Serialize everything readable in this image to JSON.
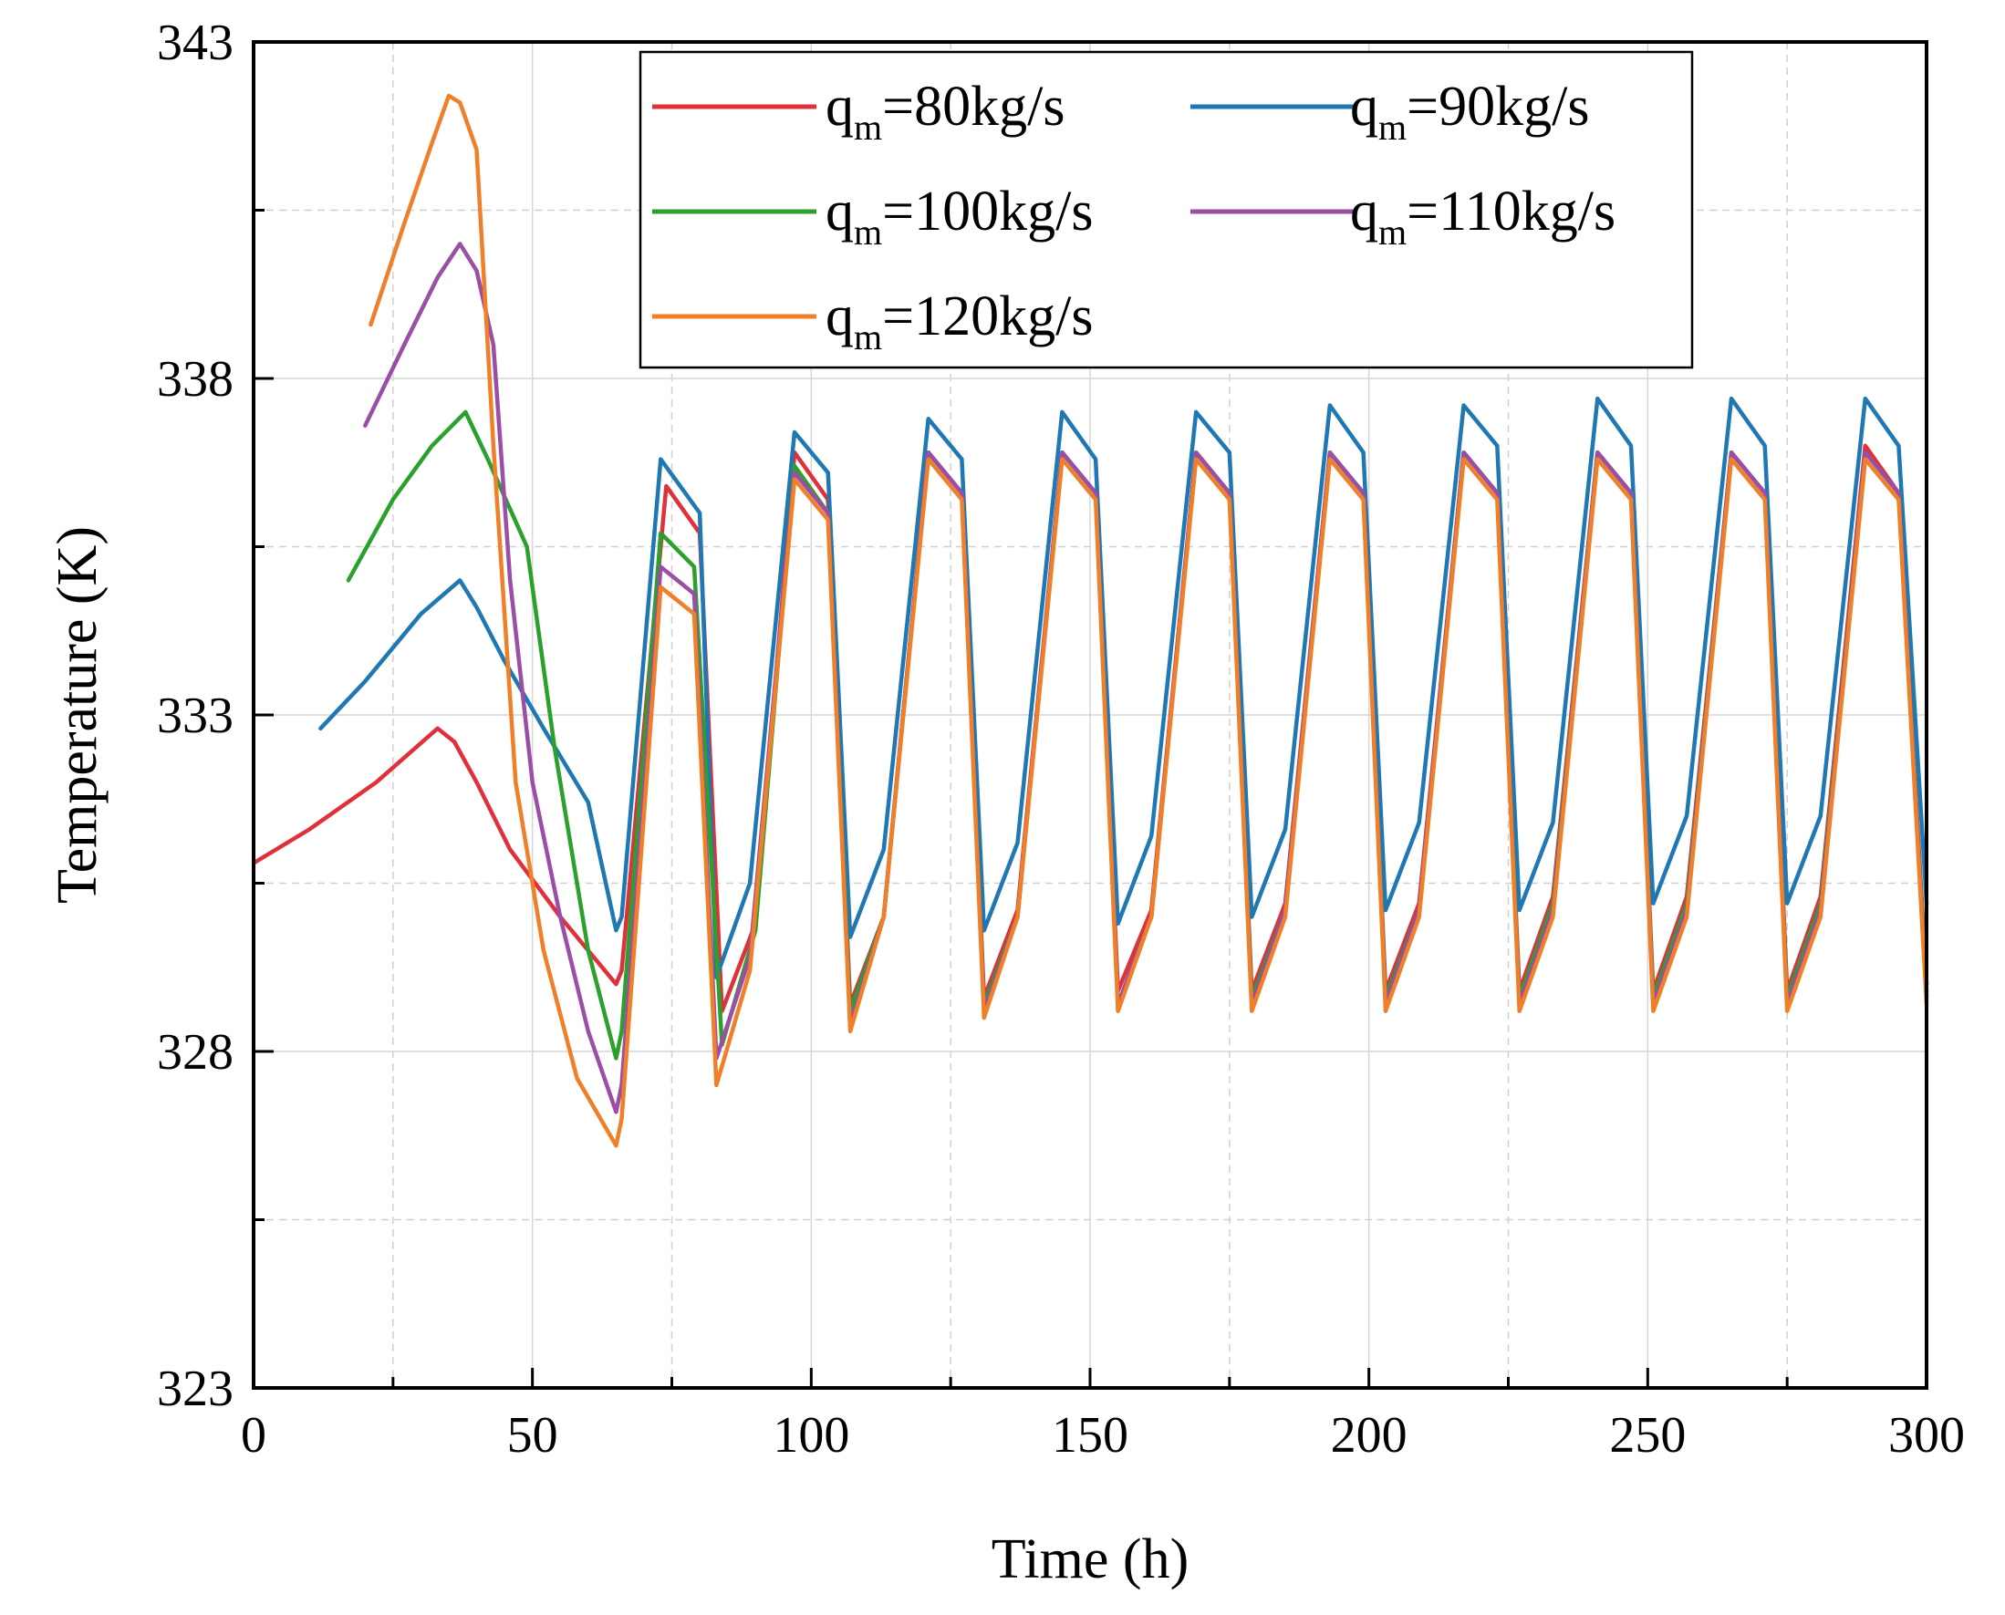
{
  "chart_data": {
    "type": "line",
    "title": "",
    "xlabel": "Time (h)",
    "ylabel": "Temperature (K)",
    "xlim": [
      0,
      300
    ],
    "ylim": [
      323,
      343
    ],
    "xticks": [
      0,
      50,
      100,
      150,
      200,
      250,
      300
    ],
    "yticks": [
      323,
      328,
      333,
      338,
      343
    ],
    "x_minor_step": 25,
    "y_minor_step": 2.5,
    "grid": true,
    "legend_position": "top-right",
    "series": [
      {
        "name": "q_m=80kg/s",
        "legend_main": "q",
        "legend_sub": "m",
        "legend_rest": "=80kg/s",
        "color": "#e0303a",
        "points": [
          [
            0,
            330.8
          ],
          [
            10,
            331.3
          ],
          [
            22,
            332.0
          ],
          [
            33,
            332.8
          ],
          [
            36,
            332.6
          ],
          [
            40,
            332.0
          ],
          [
            46,
            331.0
          ],
          [
            55,
            330.0
          ],
          [
            65,
            329.0
          ],
          [
            66,
            329.2
          ],
          [
            74,
            336.4
          ],
          [
            80,
            335.7
          ],
          [
            84,
            328.6
          ],
          [
            90,
            329.9
          ],
          [
            97,
            336.9
          ],
          [
            103,
            336.2
          ],
          [
            107,
            328.7
          ],
          [
            113,
            330.0
          ],
          [
            121,
            336.9
          ],
          [
            127,
            336.3
          ],
          [
            131,
            328.8
          ],
          [
            137,
            330.1
          ],
          [
            145,
            336.9
          ],
          [
            151,
            336.3
          ],
          [
            155,
            328.9
          ],
          [
            161,
            330.1
          ],
          [
            169,
            336.9
          ],
          [
            175,
            336.3
          ],
          [
            179,
            328.9
          ],
          [
            185,
            330.2
          ],
          [
            193,
            336.9
          ],
          [
            199,
            336.3
          ],
          [
            203,
            328.9
          ],
          [
            209,
            330.2
          ],
          [
            217,
            336.9
          ],
          [
            223,
            336.3
          ],
          [
            227,
            328.9
          ],
          [
            233,
            330.3
          ],
          [
            241,
            336.9
          ],
          [
            247,
            336.3
          ],
          [
            251,
            328.9
          ],
          [
            257,
            330.3
          ],
          [
            265,
            336.9
          ],
          [
            271,
            336.3
          ],
          [
            275,
            328.9
          ],
          [
            281,
            330.3
          ],
          [
            289,
            337.0
          ],
          [
            295,
            336.3
          ],
          [
            300,
            329.0
          ]
        ]
      },
      {
        "name": "q_m=90kg/s",
        "legend_main": "q",
        "legend_sub": "m",
        "legend_rest": "=90kg/s",
        "color": "#1f77b4",
        "points": [
          [
            12,
            332.8
          ],
          [
            20,
            333.5
          ],
          [
            30,
            334.5
          ],
          [
            37,
            335.0
          ],
          [
            40,
            334.6
          ],
          [
            45,
            333.8
          ],
          [
            52,
            332.8
          ],
          [
            60,
            331.7
          ],
          [
            65,
            329.8
          ],
          [
            66,
            330.0
          ],
          [
            73,
            336.8
          ],
          [
            80,
            336.0
          ],
          [
            83,
            329.1
          ],
          [
            89,
            330.5
          ],
          [
            97,
            337.2
          ],
          [
            103,
            336.6
          ],
          [
            107,
            329.7
          ],
          [
            113,
            331.0
          ],
          [
            121,
            337.4
          ],
          [
            127,
            336.8
          ],
          [
            131,
            329.8
          ],
          [
            137,
            331.1
          ],
          [
            145,
            337.5
          ],
          [
            151,
            336.8
          ],
          [
            155,
            329.9
          ],
          [
            161,
            331.2
          ],
          [
            169,
            337.5
          ],
          [
            175,
            336.9
          ],
          [
            179,
            330.0
          ],
          [
            185,
            331.3
          ],
          [
            193,
            337.6
          ],
          [
            199,
            336.9
          ],
          [
            203,
            330.1
          ],
          [
            209,
            331.4
          ],
          [
            217,
            337.6
          ],
          [
            223,
            337.0
          ],
          [
            227,
            330.1
          ],
          [
            233,
            331.4
          ],
          [
            241,
            337.7
          ],
          [
            247,
            337.0
          ],
          [
            251,
            330.2
          ],
          [
            257,
            331.5
          ],
          [
            265,
            337.7
          ],
          [
            271,
            337.0
          ],
          [
            275,
            330.2
          ],
          [
            281,
            331.5
          ],
          [
            289,
            337.7
          ],
          [
            295,
            337.0
          ],
          [
            300,
            330.2
          ]
        ]
      },
      {
        "name": "q_m=100kg/s",
        "legend_main": "q",
        "legend_sub": "m",
        "legend_rest": "=100kg/s",
        "color": "#2ca02c",
        "points": [
          [
            17,
            335.0
          ],
          [
            25,
            336.2
          ],
          [
            32,
            337.0
          ],
          [
            38,
            337.5
          ],
          [
            42,
            336.8
          ],
          [
            49,
            335.5
          ],
          [
            54,
            332.5
          ],
          [
            60,
            329.5
          ],
          [
            65,
            327.9
          ],
          [
            66,
            328.3
          ],
          [
            73,
            335.7
          ],
          [
            79,
            335.2
          ],
          [
            84,
            328.1
          ],
          [
            90,
            329.8
          ],
          [
            97,
            336.7
          ],
          [
            103,
            336.0
          ],
          [
            107,
            328.6
          ],
          [
            113,
            330.0
          ],
          [
            121,
            336.9
          ],
          [
            127,
            336.3
          ],
          [
            131,
            328.7
          ],
          [
            137,
            330.0
          ],
          [
            145,
            336.9
          ],
          [
            151,
            336.3
          ],
          [
            155,
            328.7
          ],
          [
            161,
            330.0
          ],
          [
            169,
            336.9
          ],
          [
            175,
            336.3
          ],
          [
            179,
            328.8
          ],
          [
            185,
            330.1
          ],
          [
            193,
            336.9
          ],
          [
            199,
            336.3
          ],
          [
            203,
            328.8
          ],
          [
            209,
            330.1
          ],
          [
            217,
            336.9
          ],
          [
            223,
            336.3
          ],
          [
            227,
            328.8
          ],
          [
            233,
            330.2
          ],
          [
            241,
            336.9
          ],
          [
            247,
            336.3
          ],
          [
            251,
            328.8
          ],
          [
            257,
            330.2
          ],
          [
            265,
            336.9
          ],
          [
            271,
            336.3
          ],
          [
            275,
            328.8
          ],
          [
            281,
            330.2
          ],
          [
            289,
            336.9
          ],
          [
            295,
            336.3
          ],
          [
            300,
            328.9
          ]
        ]
      },
      {
        "name": "q_m=110kg/s",
        "legend_main": "q",
        "legend_sub": "m",
        "legend_rest": "=110kg/s",
        "color": "#9b4ea6",
        "points": [
          [
            20,
            337.3
          ],
          [
            27,
            338.5
          ],
          [
            33,
            339.5
          ],
          [
            37,
            340.0
          ],
          [
            40,
            339.6
          ],
          [
            43,
            338.5
          ],
          [
            46,
            335.0
          ],
          [
            50,
            332.0
          ],
          [
            55,
            330.0
          ],
          [
            60,
            328.3
          ],
          [
            65,
            327.1
          ],
          [
            66,
            327.5
          ],
          [
            73,
            335.2
          ],
          [
            79,
            334.8
          ],
          [
            83,
            327.9
          ],
          [
            89,
            329.4
          ],
          [
            97,
            336.6
          ],
          [
            103,
            336.0
          ],
          [
            107,
            328.4
          ],
          [
            113,
            330.0
          ],
          [
            121,
            336.9
          ],
          [
            127,
            336.3
          ],
          [
            131,
            328.6
          ],
          [
            137,
            330.0
          ],
          [
            145,
            336.9
          ],
          [
            151,
            336.3
          ],
          [
            155,
            328.7
          ],
          [
            161,
            330.0
          ],
          [
            169,
            336.9
          ],
          [
            175,
            336.3
          ],
          [
            179,
            328.7
          ],
          [
            185,
            330.1
          ],
          [
            193,
            336.9
          ],
          [
            199,
            336.3
          ],
          [
            203,
            328.7
          ],
          [
            209,
            330.1
          ],
          [
            217,
            336.9
          ],
          [
            223,
            336.3
          ],
          [
            227,
            328.7
          ],
          [
            233,
            330.1
          ],
          [
            241,
            336.9
          ],
          [
            247,
            336.3
          ],
          [
            251,
            328.7
          ],
          [
            257,
            330.1
          ],
          [
            265,
            336.9
          ],
          [
            271,
            336.3
          ],
          [
            275,
            328.7
          ],
          [
            281,
            330.1
          ],
          [
            289,
            336.9
          ],
          [
            295,
            336.3
          ],
          [
            300,
            328.8
          ]
        ]
      },
      {
        "name": "q_m=120kg/s",
        "legend_main": "q",
        "legend_sub": "m",
        "legend_rest": "=120kg/s",
        "color": "#f07f29",
        "points": [
          [
            21,
            338.8
          ],
          [
            27,
            340.3
          ],
          [
            32,
            341.5
          ],
          [
            35,
            342.2
          ],
          [
            37,
            342.1
          ],
          [
            40,
            341.4
          ],
          [
            43,
            337.0
          ],
          [
            47,
            332.0
          ],
          [
            52,
            329.5
          ],
          [
            58,
            327.6
          ],
          [
            65,
            326.6
          ],
          [
            66,
            327.0
          ],
          [
            73,
            334.9
          ],
          [
            79,
            334.5
          ],
          [
            83,
            327.5
          ],
          [
            89,
            329.2
          ],
          [
            97,
            336.5
          ],
          [
            103,
            335.9
          ],
          [
            107,
            328.3
          ],
          [
            113,
            330.0
          ],
          [
            121,
            336.8
          ],
          [
            127,
            336.2
          ],
          [
            131,
            328.5
          ],
          [
            137,
            330.0
          ],
          [
            145,
            336.8
          ],
          [
            151,
            336.2
          ],
          [
            155,
            328.6
          ],
          [
            161,
            330.0
          ],
          [
            169,
            336.8
          ],
          [
            175,
            336.2
          ],
          [
            179,
            328.6
          ],
          [
            185,
            330.0
          ],
          [
            193,
            336.8
          ],
          [
            199,
            336.2
          ],
          [
            203,
            328.6
          ],
          [
            209,
            330.0
          ],
          [
            217,
            336.8
          ],
          [
            223,
            336.2
          ],
          [
            227,
            328.6
          ],
          [
            233,
            330.0
          ],
          [
            241,
            336.8
          ],
          [
            247,
            336.2
          ],
          [
            251,
            328.6
          ],
          [
            257,
            330.0
          ],
          [
            265,
            336.8
          ],
          [
            271,
            336.2
          ],
          [
            275,
            328.6
          ],
          [
            281,
            330.0
          ],
          [
            289,
            336.8
          ],
          [
            295,
            336.2
          ],
          [
            300,
            328.7
          ]
        ]
      }
    ]
  }
}
